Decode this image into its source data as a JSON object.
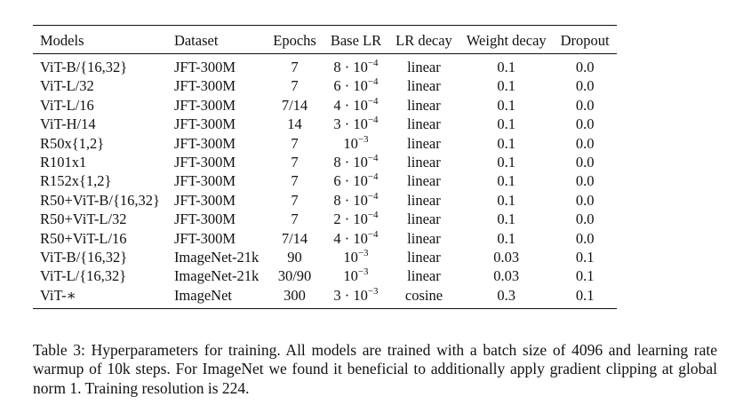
{
  "table": {
    "headers": [
      "Models",
      "Dataset",
      "Epochs",
      "Base LR",
      "LR decay",
      "Weight decay",
      "Dropout"
    ],
    "rows": [
      {
        "model": "ViT-B/{16,32}",
        "dataset": "JFT-300M",
        "epochs": "7",
        "lr_mant": "8 · 10",
        "lr_exp": "−4",
        "decay": "linear",
        "wd": "0.1",
        "dropout": "0.0"
      },
      {
        "model": "ViT-L/32",
        "dataset": "JFT-300M",
        "epochs": "7",
        "lr_mant": "6 · 10",
        "lr_exp": "−4",
        "decay": "linear",
        "wd": "0.1",
        "dropout": "0.0"
      },
      {
        "model": "ViT-L/16",
        "dataset": "JFT-300M",
        "epochs": "7/14",
        "lr_mant": "4 · 10",
        "lr_exp": "−4",
        "decay": "linear",
        "wd": "0.1",
        "dropout": "0.0"
      },
      {
        "model": "ViT-H/14",
        "dataset": "JFT-300M",
        "epochs": "14",
        "lr_mant": "3 · 10",
        "lr_exp": "−4",
        "decay": "linear",
        "wd": "0.1",
        "dropout": "0.0"
      },
      {
        "model": "R50x{1,2}",
        "dataset": "JFT-300M",
        "epochs": "7",
        "lr_mant": "10",
        "lr_exp": "−3",
        "decay": "linear",
        "wd": "0.1",
        "dropout": "0.0"
      },
      {
        "model": "R101x1",
        "dataset": "JFT-300M",
        "epochs": "7",
        "lr_mant": "8 · 10",
        "lr_exp": "−4",
        "decay": "linear",
        "wd": "0.1",
        "dropout": "0.0"
      },
      {
        "model": "R152x{1,2}",
        "dataset": "JFT-300M",
        "epochs": "7",
        "lr_mant": "6 · 10",
        "lr_exp": "−4",
        "decay": "linear",
        "wd": "0.1",
        "dropout": "0.0"
      },
      {
        "model": "R50+ViT-B/{16,32}",
        "dataset": "JFT-300M",
        "epochs": "7",
        "lr_mant": "8 · 10",
        "lr_exp": "−4",
        "decay": "linear",
        "wd": "0.1",
        "dropout": "0.0"
      },
      {
        "model": "R50+ViT-L/32",
        "dataset": "JFT-300M",
        "epochs": "7",
        "lr_mant": "2 · 10",
        "lr_exp": "−4",
        "decay": "linear",
        "wd": "0.1",
        "dropout": "0.0"
      },
      {
        "model": "R50+ViT-L/16",
        "dataset": "JFT-300M",
        "epochs": "7/14",
        "lr_mant": "4 · 10",
        "lr_exp": "−4",
        "decay": "linear",
        "wd": "0.1",
        "dropout": "0.0"
      },
      {
        "model": "ViT-B/{16,32}",
        "dataset": "ImageNet-21k",
        "epochs": "90",
        "lr_mant": "10",
        "lr_exp": "−3",
        "decay": "linear",
        "wd": "0.03",
        "dropout": "0.1"
      },
      {
        "model": "ViT-L/{16,32}",
        "dataset": "ImageNet-21k",
        "epochs": "30/90",
        "lr_mant": "10",
        "lr_exp": "−3",
        "decay": "linear",
        "wd": "0.03",
        "dropout": "0.1"
      },
      {
        "model": "ViT-∗",
        "dataset": "ImageNet",
        "epochs": "300",
        "lr_mant": "3 · 10",
        "lr_exp": "−3",
        "decay": "cosine",
        "wd": "0.3",
        "dropout": "0.1"
      }
    ]
  },
  "caption": "Table 3: Hyperparameters for training. All models are trained with a batch size of 4096 and learning rate warmup of 10k steps. For ImageNet we found it beneficial to additionally apply gradient clipping at global norm 1. Training resolution is 224."
}
